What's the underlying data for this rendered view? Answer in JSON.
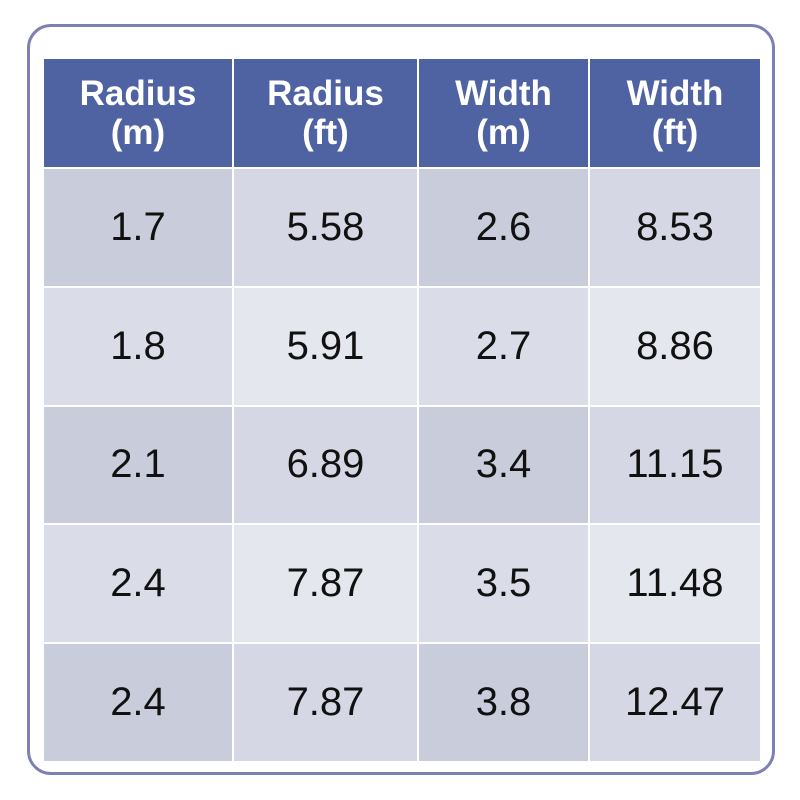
{
  "table": {
    "header": [
      "Radius (m)",
      "Radius (ft)",
      "Width (m)",
      "Width (ft)"
    ],
    "rows": [
      [
        "1.7",
        "5.58",
        "2.6",
        "8.53"
      ],
      [
        "1.8",
        "5.91",
        "2.7",
        "8.86"
      ],
      [
        "2.1",
        "6.89",
        "3.4",
        "11.15"
      ],
      [
        "2.4",
        "7.87",
        "3.5",
        "11.48"
      ],
      [
        "2.4",
        "7.87",
        "3.8",
        "12.47"
      ]
    ]
  }
}
